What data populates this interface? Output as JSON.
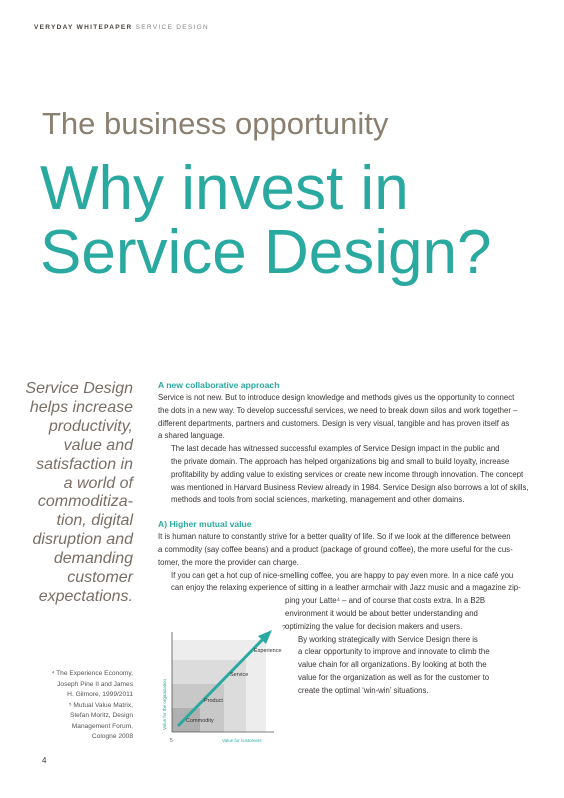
{
  "header": {
    "brand": "VERYDAY WHITEPAPER",
    "section": "SERVICE DESIGN"
  },
  "title": {
    "kicker": "The business opportunity",
    "lines": [
      "Why invest in",
      "Service Design?"
    ]
  },
  "pull_quote": [
    "Service Design",
    "helps increase",
    "productivity,",
    "value and",
    "satisfaction in",
    "a world of",
    "commoditiza-",
    "tion, digital",
    "disruption and",
    "demanding",
    "customer",
    "expectations."
  ],
  "footnotes": [
    "⁴ The Experience Economy,",
    "Joseph Pine II and James",
    "H. Gilmore, 1999/2011",
    "⁵ Mutual Value Matrix,",
    "Stefan Moritz, Design",
    "Management Forum,",
    "Cologne 2008"
  ],
  "sections": [
    {
      "heading": "A new collaborative approach",
      "paragraphs": [
        [
          "Service is not new. But to introduce design knowledge and methods gives us the opportunity to connect",
          "the dots in a new way. To develop successful services, we need to break down silos and work together –",
          "different departments, partners and customers. Design is very visual, tangible and has proven itself as",
          "a shared language."
        ],
        [
          "The last decade has witnessed successful examples of Service Design impact in the public and",
          "the private domain. The approach has helped organizations big and small to build loyalty, increase",
          "profitability by adding value to existing services or create new income through innovation. The concept",
          "was mentioned in Harvard Business Review already in 1984. Service Design also borrows a lot of skills,",
          "methods and tools from social sciences, marketing, management and other domains."
        ]
      ],
      "side_paragraphs": []
    },
    {
      "heading": "A) Higher mutual value",
      "paragraphs": [
        [
          "It is human nature to constantly strive for a better quality of life. So if we look at the difference between",
          "a commodity (say coffee beans) and a product (package of ground coffee), the more useful for the cus-",
          "tomer, the more the provider can charge."
        ],
        [
          "If you can get a hot cup of nice-smelling coffee, you are happy to pay even more. In a nice café you",
          "can enjoy the relaxing experience of sitting in a leather armchair with Jazz music and a magazine zip-"
        ]
      ],
      "side_paragraphs": [
        [
          "ping your Latte⁴ – and of course that costs extra. In a B2B",
          "environment it would be about better understanding and",
          "optimizing the value for decision makers and users."
        ],
        [
          "By working strategically with Service Design there is",
          "a clear opportunity to improve and innovate to climb the",
          "value chain for all organizations. By looking at both the",
          "value for the organization as well as for the customer to",
          "create the optimal ‘win-win’ situations."
        ]
      ]
    }
  ],
  "diagram": {
    "y_axis": "Value for the organization",
    "x_axis": "Value for customers",
    "levels": [
      "Commodity",
      "Product",
      "Service",
      "Experience"
    ],
    "question": "?",
    "note": "5"
  },
  "page_number": "4"
}
